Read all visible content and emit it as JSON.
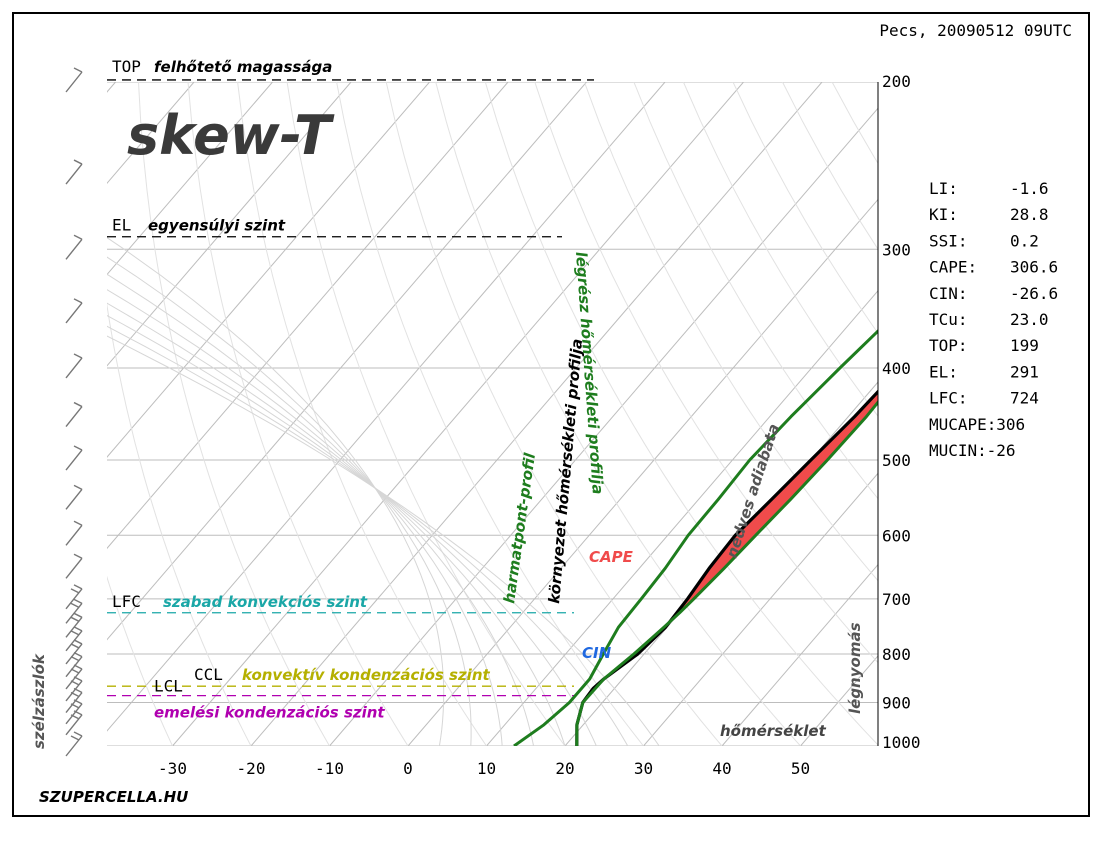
{
  "header": {
    "location_time": "Pecs, 20090512 09UTC"
  },
  "brand": {
    "title": "skew-T",
    "site": "SZUPERCELLA.HU"
  },
  "chart_data": {
    "type": "skew-t",
    "xlim": [
      -40,
      60
    ],
    "x_ticks": [
      -30,
      -20,
      -10,
      0,
      10,
      20,
      30,
      40,
      50
    ],
    "y_ticks": [
      200,
      300,
      400,
      500,
      600,
      700,
      800,
      900,
      1000
    ],
    "ylim": [
      1000,
      200
    ],
    "levels": {
      "TOP": {
        "tag": "TOP",
        "label": "felhőtető magassága",
        "p": 199,
        "color": "#000000"
      },
      "EL": {
        "tag": "EL",
        "label": "egyensúlyi szint",
        "p": 291,
        "color": "#000000"
      },
      "LFC": {
        "tag": "LFC",
        "label": "szabad konvekciós szint",
        "p": 724,
        "color": "#1aa7a7"
      },
      "CCL": {
        "tag": "CCL",
        "label": "konvektív kondenzációs szint",
        "p": 865,
        "color": "#b5b000"
      },
      "LCL": {
        "tag": "LCL",
        "label": "emelési kondenzációs szint",
        "p": 885,
        "color": "#b000b0"
      }
    },
    "series": [
      {
        "key": "environment",
        "label": "környezet hőmérsékleti profilja",
        "color": "#000000",
        "points": [
          [
            1000,
            21.5
          ],
          [
            950,
            19.2
          ],
          [
            900,
            17.5
          ],
          [
            870,
            17.3
          ],
          [
            850,
            17.6
          ],
          [
            800,
            19.2
          ],
          [
            750,
            19.8
          ],
          [
            700,
            19.5
          ],
          [
            650,
            18.9
          ],
          [
            600,
            18.6
          ],
          [
            550,
            19.3
          ],
          [
            500,
            20.0
          ],
          [
            450,
            20.8
          ],
          [
            400,
            21.3
          ],
          [
            350,
            20.5
          ],
          [
            300,
            17.5
          ],
          [
            270,
            17.4
          ],
          [
            250,
            18.1
          ],
          [
            230,
            19.5
          ],
          [
            200,
            23.5
          ]
        ]
      },
      {
        "key": "dewpoint",
        "label": "harmatpont-profil",
        "color": "#1e7d1e",
        "points": [
          [
            1000,
            13.5
          ],
          [
            950,
            15.0
          ],
          [
            900,
            15.8
          ],
          [
            850,
            15.8
          ],
          [
            800,
            14.8
          ],
          [
            750,
            13.8
          ],
          [
            700,
            13.6
          ],
          [
            650,
            13.3
          ],
          [
            600,
            12.6
          ],
          [
            550,
            12.5
          ],
          [
            500,
            12.2
          ],
          [
            450,
            12.7
          ],
          [
            400,
            13.6
          ],
          [
            350,
            14.8
          ],
          [
            300,
            15.8
          ],
          [
            250,
            17.1
          ],
          [
            200,
            21.5
          ]
        ]
      },
      {
        "key": "parcel",
        "label": "légrész hőmérsékleti profilja",
        "color": "#1e7d1e",
        "points": [
          [
            1000,
            21.5
          ],
          [
            950,
            19.2
          ],
          [
            900,
            17.5
          ],
          [
            850,
            17.6
          ],
          [
            800,
            18.7
          ],
          [
            750,
            19.6
          ],
          [
            724,
            20.0
          ],
          [
            700,
            20.3
          ],
          [
            650,
            20.8
          ],
          [
            600,
            21.2
          ],
          [
            550,
            21.7
          ],
          [
            500,
            22.1
          ],
          [
            450,
            22.3
          ],
          [
            400,
            22.0
          ],
          [
            350,
            20.8
          ],
          [
            300,
            18.5
          ],
          [
            270,
            17.0
          ],
          [
            250,
            17.6
          ],
          [
            200,
            22.0
          ]
        ]
      }
    ],
    "areas": {
      "cape_label": "CAPE",
      "cin_label": "CIN",
      "cape_color": "#f04b4b",
      "cin_color": "#1f68e0"
    },
    "curve_labels": {
      "moist_adiabat": "nedves adiabata",
      "pressure": "légnyomás",
      "temperature": "hőmérséklet",
      "wind_barbs": "szélzászlók"
    },
    "indices": [
      {
        "k": "LI:",
        "v": "-1.6"
      },
      {
        "k": "KI:",
        "v": "28.8"
      },
      {
        "k": "SSI:",
        "v": "0.2"
      },
      {
        "k": "CAPE:",
        "v": "306.6"
      },
      {
        "k": "CIN:",
        "v": "-26.6"
      },
      {
        "k": "TCu:",
        "v": "23.0"
      },
      {
        "k": "TOP:",
        "v": "199"
      },
      {
        "k": "EL:",
        "v": "291"
      },
      {
        "k": "LFC:",
        "v": "724"
      },
      {
        "k": "MUCAPE:",
        "v": "306"
      },
      {
        "k": "MUCIN:",
        "v": "-26"
      }
    ],
    "wind_barb_levels": [
      1000,
      950,
      925,
      900,
      875,
      850,
      825,
      800,
      775,
      750,
      725,
      700,
      650,
      600,
      550,
      500,
      450,
      400,
      350,
      300,
      250,
      200
    ]
  },
  "colors": {
    "grid": "#c8c8c8",
    "isotherm": "#c0c0c0"
  }
}
